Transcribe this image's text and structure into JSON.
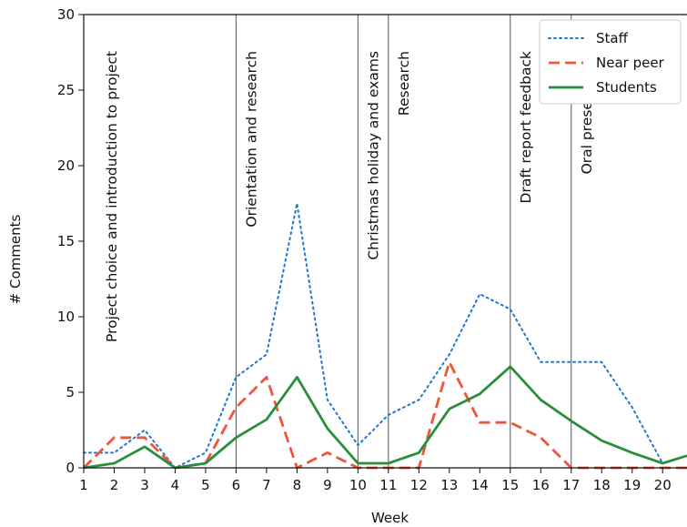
{
  "chart_data": {
    "type": "line",
    "xlabel": "Week",
    "ylabel": "# Comments",
    "x": [
      1,
      2,
      3,
      4,
      5,
      6,
      7,
      8,
      9,
      10,
      11,
      12,
      13,
      14,
      15,
      16,
      17,
      18,
      19,
      20,
      20.8
    ],
    "xticks": [
      1,
      2,
      3,
      4,
      5,
      6,
      7,
      8,
      9,
      10,
      11,
      12,
      13,
      14,
      15,
      16,
      17,
      18,
      19,
      20
    ],
    "xlim": [
      1,
      20.8
    ],
    "ylim": [
      0,
      30
    ],
    "yticks": [
      0,
      5,
      10,
      15,
      20,
      25,
      30
    ],
    "series": [
      {
        "name": "Staff",
        "style": "dotted",
        "color": "#1f77d4",
        "values": [
          1,
          1,
          2.5,
          0,
          1,
          6,
          7.5,
          17.5,
          4.5,
          1.5,
          3.5,
          4.5,
          7.5,
          11.5,
          10.5,
          7,
          7,
          7,
          4,
          0.3,
          0.8
        ]
      },
      {
        "name": "Near peer",
        "style": "dashed",
        "color": "#f0533e",
        "values": [
          0,
          2,
          2,
          0,
          0.3,
          4,
          6,
          0,
          1,
          0,
          0,
          0,
          7,
          3,
          3,
          2,
          0,
          0,
          0,
          0,
          0
        ]
      },
      {
        "name": "Students",
        "style": "solid",
        "color": "#2a8f3a",
        "values": [
          0,
          0.3,
          1.4,
          0,
          0.3,
          2,
          3.2,
          6,
          2.6,
          0.3,
          0.3,
          1,
          3.9,
          4.9,
          6.7,
          4.5,
          3.1,
          1.8,
          1,
          0.3,
          0.8
        ]
      }
    ],
    "phases": [
      {
        "x": 1,
        "label": "Project choice and introduction to project",
        "line": false
      },
      {
        "x": 6,
        "label": "Orientation and research",
        "line": true
      },
      {
        "x": 10,
        "label": "Christmas holiday and exams",
        "line": true
      },
      {
        "x": 11,
        "label": "Research",
        "line": true
      },
      {
        "x": 15,
        "label": "Draft report feedback",
        "line": true
      },
      {
        "x": 17,
        "label": "Oral presentation",
        "line": true
      }
    ],
    "legend_position": "top-right",
    "grid": false
  }
}
